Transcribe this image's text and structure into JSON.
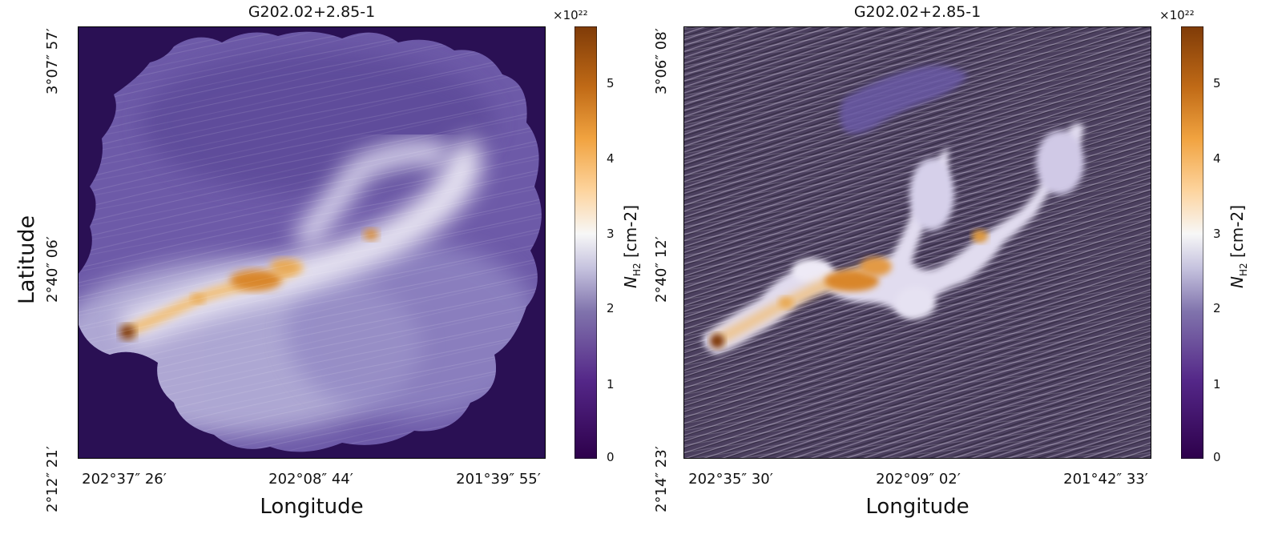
{
  "chart_data": [
    {
      "type": "heatmap",
      "title": "G202.02+2.85-1",
      "xlabel": "Longitude",
      "ylabel": "Latitude",
      "x_ticks": [
        "202°37″ 26′",
        "202°08″ 44′",
        "201°39″ 55′"
      ],
      "y_ticks": [
        "3°07″ 57′",
        "2°40″ 06′",
        "2°12″ 21′"
      ],
      "colorbar": {
        "label_main": "N",
        "label_sub": "H2",
        "label_unit": "[cm-2]",
        "multiplier": "×10²²",
        "ticks": [
          "0",
          "1",
          "2",
          "3",
          "4",
          "5"
        ],
        "range": [
          0,
          5.7
        ],
        "colormap": "PuOr"
      },
      "background_color": "#2a1054",
      "overlay": "plane-of-sky magnetic field streamlines"
    },
    {
      "type": "heatmap",
      "title": "G202.02+2.85-1",
      "xlabel": "Longitude",
      "ylabel": "",
      "x_ticks": [
        "202°35″ 30′",
        "202°09″ 02′",
        "201°42″ 33′"
      ],
      "y_ticks": [
        "3°06″ 08′",
        "2°40″ 12′",
        "2°14″ 23′"
      ],
      "colorbar": {
        "label_main": "N",
        "label_sub": "H2",
        "label_unit": "[cm-2]",
        "multiplier": "×10²²",
        "ticks": [
          "0",
          "1",
          "2",
          "3",
          "4",
          "5"
        ],
        "range": [
          0,
          5.7
        ],
        "colormap": "PuOr"
      },
      "background_color": "#4a3f5c",
      "overlay": "line integral convolution texture"
    }
  ],
  "colors": {
    "dark_purple": "#2d0d5a",
    "mid_purple": "#7b6cb3",
    "light_lavender": "#d9d6ea",
    "white": "#f7f7f7",
    "light_orange": "#f3c886",
    "orange": "#de8a2c",
    "brown": "#7f3b08"
  }
}
